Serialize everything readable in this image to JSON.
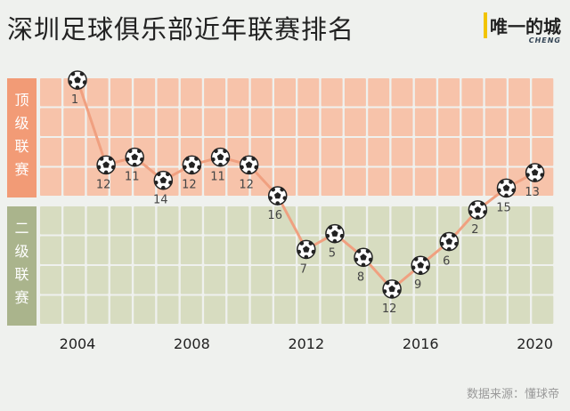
{
  "header": {
    "title": "深圳足球俱乐部近年联赛排名",
    "brand": "唯一的城",
    "brand_sub": "CHENG"
  },
  "footer": {
    "source": "数据来源：懂球帝"
  },
  "colors": {
    "top_cell": "#f7c3aa",
    "top_label": "#f29b76",
    "second_cell": "#d7dcc0",
    "second_label": "#aab48c",
    "line": "#f0a080"
  },
  "chart_data": {
    "type": "line",
    "title": "深圳足球俱乐部近年联赛排名",
    "bands": [
      {
        "name": "顶级联赛",
        "league": "top"
      },
      {
        "name": "二级联赛",
        "league": "second"
      }
    ],
    "x": [
      2004,
      2005,
      2006,
      2007,
      2008,
      2009,
      2010,
      2011,
      2012,
      2013,
      2014,
      2015,
      2016,
      2017,
      2018,
      2019,
      2020
    ],
    "league": [
      "top",
      "top",
      "top",
      "top",
      "top",
      "top",
      "top",
      "top",
      "second",
      "second",
      "second",
      "second",
      "second",
      "second",
      "second",
      "top",
      "top"
    ],
    "rank": [
      1,
      12,
      11,
      14,
      12,
      11,
      12,
      16,
      7,
      5,
      8,
      12,
      9,
      6,
      2,
      15,
      13
    ],
    "xticks": [
      2004,
      2008,
      2012,
      2016,
      2020
    ],
    "marker": "soccer-ball-icon"
  }
}
